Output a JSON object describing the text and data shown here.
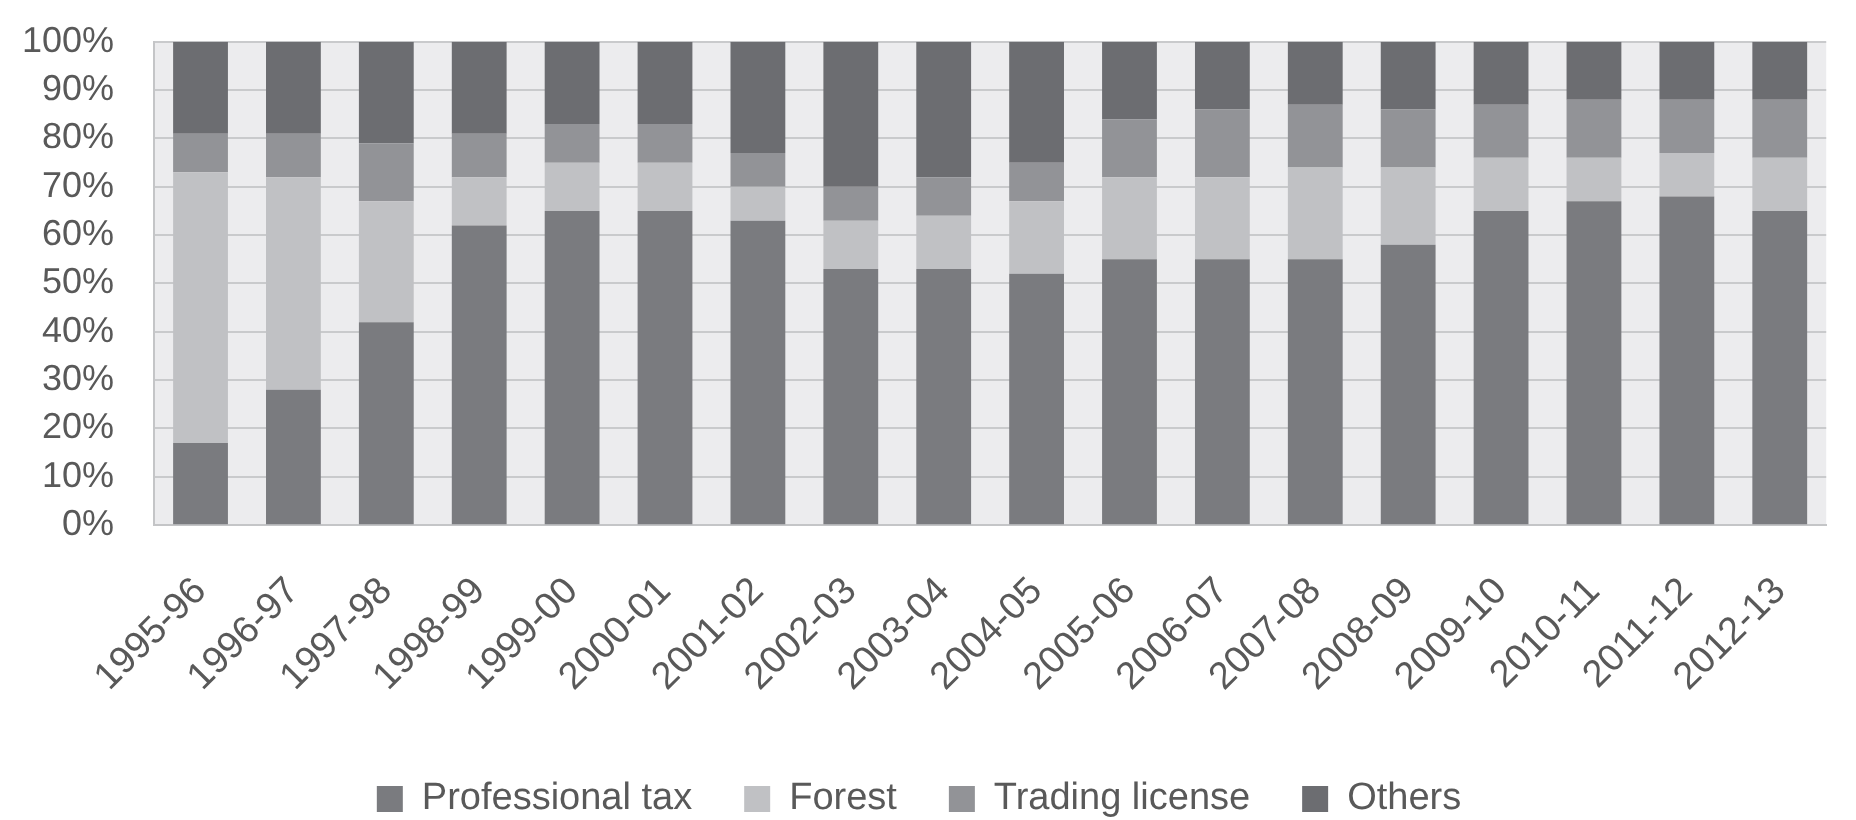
{
  "chart_data": {
    "type": "bar",
    "stacked": true,
    "grid": "y",
    "legend": "bottom",
    "categories": [
      "1995-96",
      "1996-97",
      "1997-98",
      "1998-99",
      "1999-00",
      "2000-01",
      "2001-02",
      "2002-03",
      "2003-04",
      "2004-05",
      "2005-06",
      "2006-07",
      "2007-08",
      "2008-09",
      "2009-10",
      "2010-11",
      "2011-12",
      "2012-13"
    ],
    "series": [
      {
        "name": "Professional tax",
        "color": "#7a7b7f",
        "values": [
          17,
          28,
          42,
          62,
          65,
          65,
          63,
          53,
          53,
          52,
          55,
          55,
          55,
          58,
          65,
          67,
          68,
          65
        ]
      },
      {
        "name": "Forest",
        "color": "#c0c1c4",
        "values": [
          56,
          44,
          25,
          10,
          10,
          10,
          7,
          10,
          11,
          15,
          17,
          17,
          19,
          16,
          11,
          9,
          9,
          11
        ]
      },
      {
        "name": "Trading license",
        "color": "#929397",
        "values": [
          8,
          9,
          12,
          9,
          8,
          8,
          7,
          7,
          8,
          8,
          12,
          14,
          13,
          12,
          11,
          12,
          11,
          12
        ]
      },
      {
        "name": "Others",
        "color": "#6c6d71",
        "values": [
          19,
          19,
          21,
          19,
          17,
          17,
          23,
          30,
          28,
          25,
          16,
          14,
          13,
          14,
          13,
          12,
          12,
          12
        ]
      }
    ],
    "ylim": [
      0,
      100
    ],
    "yticks": [
      {
        "value": 0,
        "label": "0%"
      },
      {
        "value": 10,
        "label": "10%"
      },
      {
        "value": 20,
        "label": "20%"
      },
      {
        "value": 30,
        "label": "30%"
      },
      {
        "value": 40,
        "label": "40%"
      },
      {
        "value": 50,
        "label": "50%"
      },
      {
        "value": 60,
        "label": "60%"
      },
      {
        "value": 70,
        "label": "70%"
      },
      {
        "value": 80,
        "label": "80%"
      },
      {
        "value": 90,
        "label": "90%"
      },
      {
        "value": 100,
        "label": "100%"
      }
    ]
  }
}
